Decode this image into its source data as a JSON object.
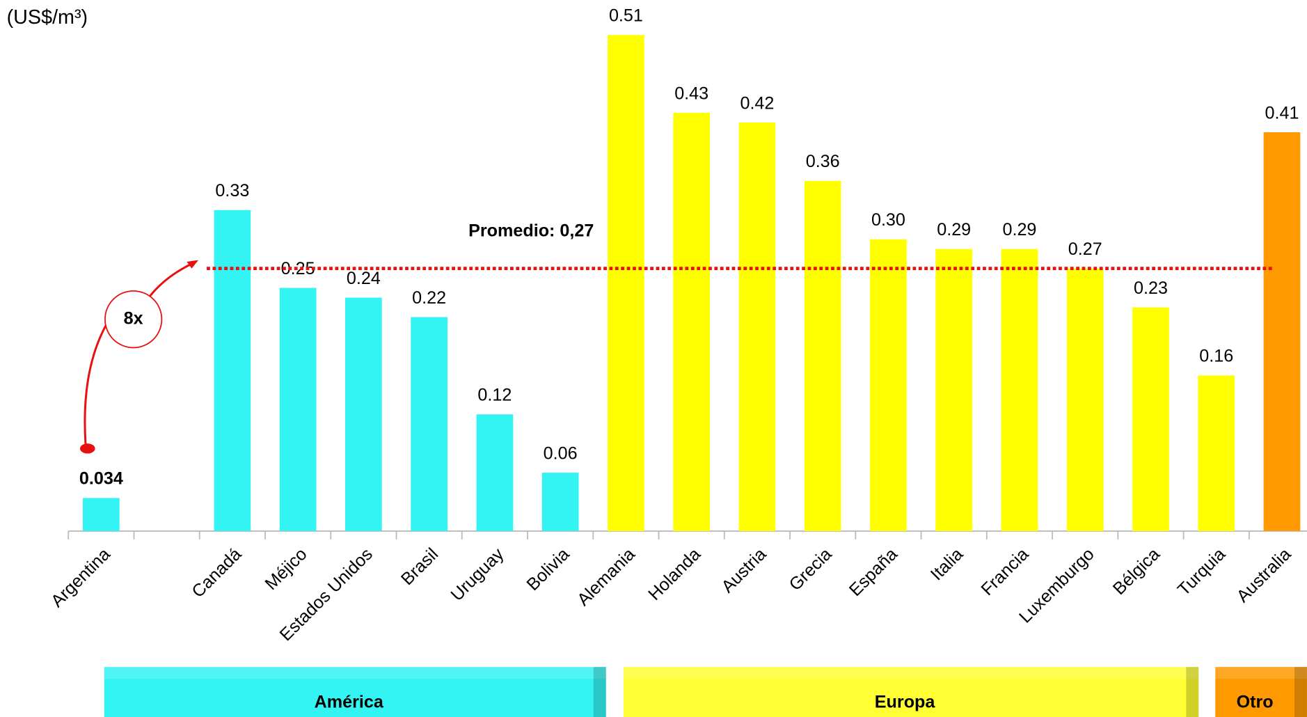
{
  "chart_data": {
    "type": "bar",
    "y_label": "(US$/m³)",
    "categories": [
      "Argentina",
      null,
      "Canadá",
      "Méjico",
      "Estados Unidos",
      "Brasil",
      "Uruguay",
      "Bolivia",
      "Alemania",
      "Holanda",
      "Austria",
      "Grecia",
      "España",
      "Italia",
      "Francia",
      "Luxemburgo",
      "Bélgica",
      "Turquia",
      "Australia"
    ],
    "values": [
      0.034,
      null,
      0.33,
      0.25,
      0.24,
      0.22,
      0.12,
      0.06,
      0.51,
      0.43,
      0.42,
      0.36,
      0.3,
      0.29,
      0.29,
      0.27,
      0.23,
      0.16,
      0.41
    ],
    "value_labels": [
      "0.034",
      null,
      "0.33",
      "0.25",
      "0.24",
      "0.22",
      "0.12",
      "0.06",
      "0.51",
      "0.43",
      "0.42",
      "0.36",
      "0.30",
      "0.29",
      "0.29",
      "0.27",
      "0.23",
      "0.16",
      "0.41"
    ],
    "colors": [
      "#33f3f3",
      null,
      "#33f3f3",
      "#33f3f3",
      "#33f3f3",
      "#33f3f3",
      "#33f3f3",
      "#33f3f3",
      "#ffff00",
      "#ffff00",
      "#ffff00",
      "#ffff00",
      "#ffff00",
      "#ffff00",
      "#ffff00",
      "#ffff00",
      "#ffff00",
      "#ffff00",
      "#ff9900"
    ],
    "ylim": [
      0,
      0.55
    ],
    "average": {
      "value": 0.27,
      "label": "Promedio: 0,27",
      "color": "#e81010"
    },
    "annotation": "8x",
    "groups": [
      {
        "name": "América",
        "color": "#33f3f3"
      },
      {
        "name": "Europa",
        "color": "#ffff33"
      },
      {
        "name": "Otro",
        "color": "#ff9900"
      }
    ]
  }
}
